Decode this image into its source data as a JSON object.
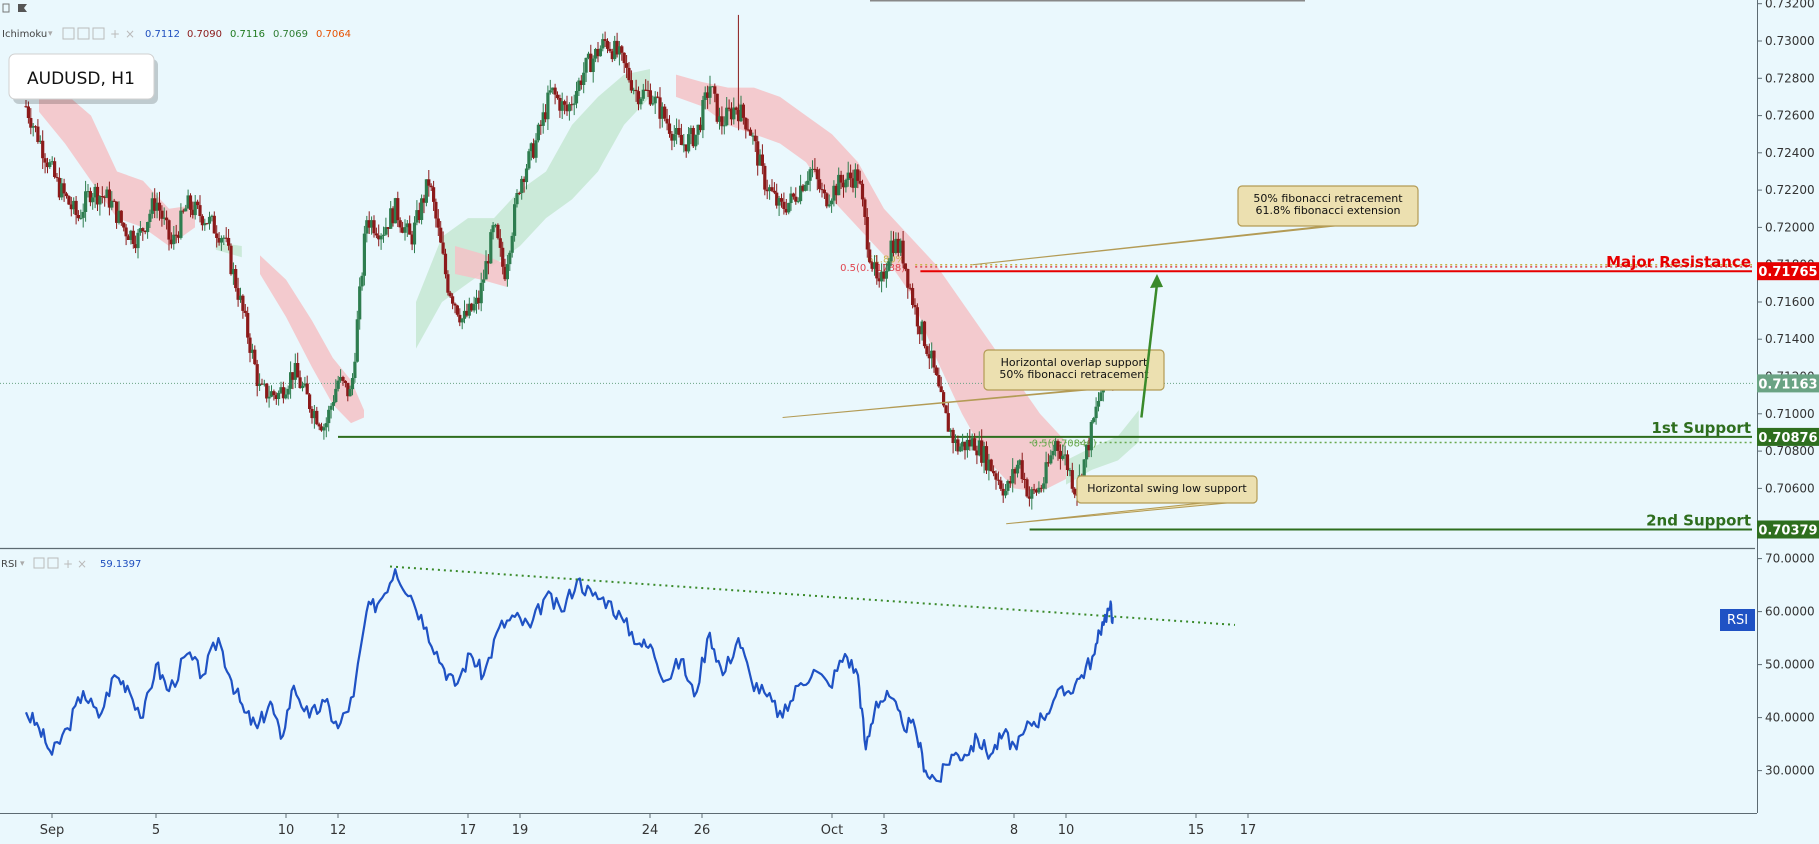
{
  "toolbar": {
    "indicator_name": "Ichimoku",
    "values": [
      "0.7112",
      "0.7090",
      "0.7116",
      "0.7069",
      "0.7064"
    ],
    "value_colors": [
      "#1f4fbf",
      "#8b1a1a",
      "#1f7a1f",
      "#2e7d32",
      "#e65100"
    ]
  },
  "symbol_label": "AUDUSD, H1",
  "rsi_header": {
    "name": "RSI",
    "value": "59.1397"
  },
  "rsi_badge": "RSI",
  "colors": {
    "background": "#eaf8fd",
    "candle_up": "#2e7d4f",
    "candle_down": "#8b1a1a",
    "resistance": "#e60000",
    "support": "#2e6e1e",
    "rsi_line": "#1f52c4",
    "cloud_red": "#f4c2c6",
    "cloud_green": "#c6e8d2",
    "callout_fill": "#ece0b0",
    "callout_border": "#b39b55"
  },
  "chart_data": [
    {
      "type": "candlestick",
      "title": "AUDUSD, H1",
      "ylim": [
        0.7028,
        0.7322
      ],
      "yticks": [
        "0.73200",
        "0.73000",
        "0.72800",
        "0.72600",
        "0.72400",
        "0.72200",
        "0.72000",
        "0.71800",
        "0.71600",
        "0.71400",
        "0.71200",
        "0.71000",
        "0.70800",
        "0.70600"
      ],
      "x_day_range": [
        -1,
        48
      ],
      "x_ticks": [
        {
          "day": 0,
          "label": "Sep"
        },
        {
          "day": 4,
          "label": "5"
        },
        {
          "day": 9,
          "label": "10"
        },
        {
          "day": 11,
          "label": "12"
        },
        {
          "day": 16,
          "label": "17"
        },
        {
          "day": 18,
          "label": "19"
        },
        {
          "day": 23,
          "label": "24"
        },
        {
          "day": 25,
          "label": "26"
        },
        {
          "day": 30,
          "label": "Oct"
        },
        {
          "day": 32,
          "label": "3"
        },
        {
          "day": 37,
          "label": "8"
        },
        {
          "day": 39,
          "label": "10"
        },
        {
          "day": 44,
          "label": "15"
        },
        {
          "day": 46,
          "label": "17"
        }
      ],
      "price_path": [
        [
          -1,
          0.7265
        ],
        [
          0.2,
          0.7223
        ],
        [
          1,
          0.7205
        ],
        [
          1.5,
          0.722
        ],
        [
          2.2,
          0.7215
        ],
        [
          2.8,
          0.7199
        ],
        [
          3.3,
          0.7194
        ],
        [
          4,
          0.7215
        ],
        [
          4.6,
          0.719
        ],
        [
          5.2,
          0.7212
        ],
        [
          5.9,
          0.7205
        ],
        [
          6.6,
          0.7195
        ],
        [
          7.2,
          0.7163
        ],
        [
          7.7,
          0.7132
        ],
        [
          8,
          0.7112
        ],
        [
          8.7,
          0.711
        ],
        [
          9.3,
          0.7123
        ],
        [
          10,
          0.7103
        ],
        [
          10.5,
          0.7093
        ],
        [
          11,
          0.7118
        ],
        [
          11.5,
          0.711
        ],
        [
          12.1,
          0.7205
        ],
        [
          12.7,
          0.7198
        ],
        [
          13.2,
          0.721
        ],
        [
          13.8,
          0.7193
        ],
        [
          14.5,
          0.7225
        ],
        [
          15.2,
          0.717
        ],
        [
          15.8,
          0.715
        ],
        [
          16.4,
          0.716
        ],
        [
          17,
          0.72
        ],
        [
          17.4,
          0.7175
        ],
        [
          18,
          0.7225
        ],
        [
          18.6,
          0.7245
        ],
        [
          19.2,
          0.7273
        ],
        [
          19.8,
          0.7262
        ],
        [
          20.5,
          0.7285
        ],
        [
          21.3,
          0.73
        ],
        [
          21.8,
          0.7292
        ],
        [
          22.5,
          0.7272
        ],
        [
          23,
          0.7272
        ],
        [
          23.6,
          0.7258
        ],
        [
          24.2,
          0.7244
        ],
        [
          24.8,
          0.725
        ],
        [
          25.3,
          0.7277
        ],
        [
          25.7,
          0.7255
        ],
        [
          26.3,
          0.7265
        ],
        [
          26.8,
          0.7255
        ],
        [
          27.4,
          0.7225
        ],
        [
          28,
          0.721
        ],
        [
          28.5,
          0.7215
        ],
        [
          29.2,
          0.7232
        ],
        [
          29.7,
          0.7215
        ],
        [
          30.4,
          0.7225
        ],
        [
          31,
          0.7228
        ],
        [
          31.4,
          0.719
        ],
        [
          31.8,
          0.7165
        ],
        [
          32.3,
          0.7193
        ],
        [
          32.7,
          0.7187
        ],
        [
          33.2,
          0.7155
        ],
        [
          33.8,
          0.713
        ],
        [
          34.3,
          0.71
        ],
        [
          34.8,
          0.7082
        ],
        [
          35.5,
          0.7085
        ],
        [
          36.2,
          0.707
        ],
        [
          36.7,
          0.7058
        ],
        [
          37.2,
          0.7075
        ],
        [
          37.6,
          0.7055
        ],
        [
          38.1,
          0.7062
        ],
        [
          38.6,
          0.7085
        ],
        [
          39,
          0.7075
        ],
        [
          39.4,
          0.7058
        ],
        [
          39.8,
          0.708
        ],
        [
          40.3,
          0.711
        ],
        [
          40.6,
          0.7125
        ],
        [
          40.8,
          0.7116
        ]
      ],
      "cloud_segments": [
        {
          "color": "red",
          "points": [
            [
              -0.5,
              0.7285,
              0.7262
            ],
            [
              0.5,
              0.7272,
              0.7245
            ],
            [
              1.5,
              0.726,
              0.7225
            ],
            [
              2.5,
              0.723,
              0.7205
            ],
            [
              3.5,
              0.7225,
              0.72
            ],
            [
              4.5,
              0.721,
              0.719
            ],
            [
              5.5,
              0.7212,
              0.72
            ]
          ]
        },
        {
          "color": "green",
          "points": [
            [
              6.3,
              0.7192,
              0.7188
            ],
            [
              7.3,
              0.719,
              0.7184
            ]
          ]
        },
        {
          "color": "red",
          "points": [
            [
              8,
              0.7185,
              0.7175
            ],
            [
              9,
              0.7172,
              0.7152
            ],
            [
              10,
              0.715,
              0.7125
            ],
            [
              10.8,
              0.713,
              0.7105
            ],
            [
              11.5,
              0.7118,
              0.7095
            ],
            [
              12,
              0.7102,
              0.7098
            ]
          ]
        },
        {
          "color": "green",
          "points": [
            [
              14,
              0.716,
              0.7135
            ],
            [
              15,
              0.7195,
              0.716
            ],
            [
              16,
              0.7205,
              0.717
            ],
            [
              17,
              0.7205,
              0.718
            ],
            [
              18,
              0.722,
              0.719
            ],
            [
              19,
              0.723,
              0.7205
            ],
            [
              20,
              0.7255,
              0.7215
            ],
            [
              21,
              0.727,
              0.723
            ],
            [
              22,
              0.7282,
              0.7255
            ],
            [
              23,
              0.7285,
              0.727
            ]
          ]
        },
        {
          "color": "red",
          "points": [
            [
              15.5,
              0.719,
              0.7175
            ],
            [
              16.5,
              0.7186,
              0.7172
            ],
            [
              17.5,
              0.718,
              0.7168
            ]
          ]
        },
        {
          "color": "red",
          "points": [
            [
              24,
              0.7282,
              0.727
            ],
            [
              25,
              0.7278,
              0.7265
            ],
            [
              26,
              0.7275,
              0.7255
            ],
            [
              27,
              0.7275,
              0.725
            ],
            [
              28,
              0.727,
              0.7245
            ],
            [
              29,
              0.726,
              0.7235
            ],
            [
              30,
              0.725,
              0.7215
            ],
            [
              31,
              0.7235,
              0.72
            ],
            [
              32,
              0.721,
              0.7185
            ],
            [
              33,
              0.7195,
              0.7165
            ],
            [
              34,
              0.718,
              0.713
            ],
            [
              35,
              0.716,
              0.71
            ],
            [
              36,
              0.714,
              0.7075
            ],
            [
              37,
              0.712,
              0.706
            ],
            [
              38,
              0.71,
              0.7058
            ],
            [
              39,
              0.7085,
              0.7065
            ]
          ]
        },
        {
          "color": "green",
          "points": [
            [
              39,
              0.7075,
              0.7062
            ],
            [
              40,
              0.7082,
              0.707
            ],
            [
              41,
              0.7088,
              0.7075
            ],
            [
              41.8,
              0.7102,
              0.7085
            ]
          ]
        }
      ],
      "levels": [
        {
          "name": "Major Resistance",
          "price": 0.71765,
          "label": "0.71765",
          "from_day": 33.4
        },
        {
          "name": "1st Support",
          "price": 0.70876,
          "label": "0.70876",
          "from_day": 11
        },
        {
          "name": "2nd Support",
          "price": 0.70379,
          "label": "0.70379",
          "from_day": 37.6
        }
      ],
      "last_price": {
        "price": 0.71163,
        "label": "0.71163"
      },
      "fib_levels": [
        {
          "text": "61.80%",
          "price": 0.718,
          "from_day": 33.2
        },
        {
          "text": "0.5(0.71788)",
          "price": 0.71788,
          "from_day": 33.2
        },
        {
          "text": "0.5(0.70846)",
          "price": 0.70846,
          "from_day": 37.6
        }
      ],
      "callouts": [
        {
          "lines": [
            "50% fibonacci retracement",
            "61.8% fibonacci extension"
          ],
          "pointer_day": 35.4,
          "pointer_price": 0.718
        },
        {
          "lines": [
            "Horizontal overlap support",
            "50% fibonacci retracement"
          ],
          "pointer_day": 28.1,
          "pointer_price": 0.7098
        },
        {
          "lines": [
            "Horizontal swing low support"
          ],
          "pointer_day": 36.7,
          "pointer_price": 0.7041
        }
      ],
      "arrow": {
        "from": [
          41.9,
          0.7098
        ],
        "to": [
          42.5,
          0.7175
        ]
      }
    },
    {
      "type": "line",
      "title": "RSI",
      "value": 59.1397,
      "ylim": [
        22,
        72
      ],
      "yticks": [
        "70.0000",
        "60.0000",
        "50.0000",
        "40.0000",
        "30.0000"
      ],
      "path": [
        [
          -1,
          41
        ],
        [
          -0.5,
          38
        ],
        [
          0,
          33
        ],
        [
          0.6,
          38
        ],
        [
          1.2,
          45
        ],
        [
          1.8,
          40
        ],
        [
          2.4,
          48
        ],
        [
          2.9,
          46
        ],
        [
          3.5,
          40
        ],
        [
          4,
          50
        ],
        [
          4.5,
          45
        ],
        [
          5.2,
          52
        ],
        [
          5.8,
          48
        ],
        [
          6.4,
          55
        ],
        [
          6.9,
          47
        ],
        [
          7.4,
          41
        ],
        [
          7.9,
          38
        ],
        [
          8.4,
          43
        ],
        [
          8.8,
          36
        ],
        [
          9.3,
          46
        ],
        [
          9.9,
          40
        ],
        [
          10.5,
          43
        ],
        [
          11,
          38
        ],
        [
          11.6,
          44
        ],
        [
          12.1,
          60
        ],
        [
          12.6,
          62
        ],
        [
          13.2,
          68
        ],
        [
          13.8,
          63
        ],
        [
          14.4,
          57
        ],
        [
          15,
          50
        ],
        [
          15.5,
          46
        ],
        [
          16.1,
          52
        ],
        [
          16.6,
          48
        ],
        [
          17.2,
          57
        ],
        [
          17.8,
          59
        ],
        [
          18.4,
          57
        ],
        [
          19,
          63
        ],
        [
          19.6,
          60
        ],
        [
          20.2,
          66
        ],
        [
          20.8,
          63
        ],
        [
          21.4,
          62
        ],
        [
          22,
          58
        ],
        [
          22.6,
          54
        ],
        [
          23.1,
          53
        ],
        [
          23.6,
          47
        ],
        [
          24.2,
          51
        ],
        [
          24.7,
          44
        ],
        [
          25.3,
          56
        ],
        [
          25.8,
          48
        ],
        [
          26.4,
          55
        ],
        [
          26.9,
          47
        ],
        [
          27.5,
          44
        ],
        [
          28.1,
          40
        ],
        [
          28.7,
          46
        ],
        [
          29.3,
          49
        ],
        [
          29.9,
          46
        ],
        [
          30.5,
          52
        ],
        [
          31,
          48
        ],
        [
          31.3,
          34
        ],
        [
          31.7,
          43
        ],
        [
          32.2,
          44
        ],
        [
          32.7,
          39
        ],
        [
          33.2,
          38
        ],
        [
          33.6,
          30
        ],
        [
          34.1,
          28
        ],
        [
          34.6,
          33
        ],
        [
          35.1,
          33
        ],
        [
          35.6,
          36
        ],
        [
          36.1,
          33
        ],
        [
          36.6,
          37
        ],
        [
          37.1,
          34
        ],
        [
          37.6,
          39
        ],
        [
          38.1,
          40
        ],
        [
          38.6,
          44
        ],
        [
          39.1,
          45
        ],
        [
          39.6,
          48
        ],
        [
          40.1,
          52
        ],
        [
          40.4,
          58
        ],
        [
          40.7,
          61
        ],
        [
          40.8,
          59
        ]
      ],
      "trendline": [
        [
          13,
          68.5
        ],
        [
          45.5,
          57.5
        ]
      ]
    }
  ]
}
